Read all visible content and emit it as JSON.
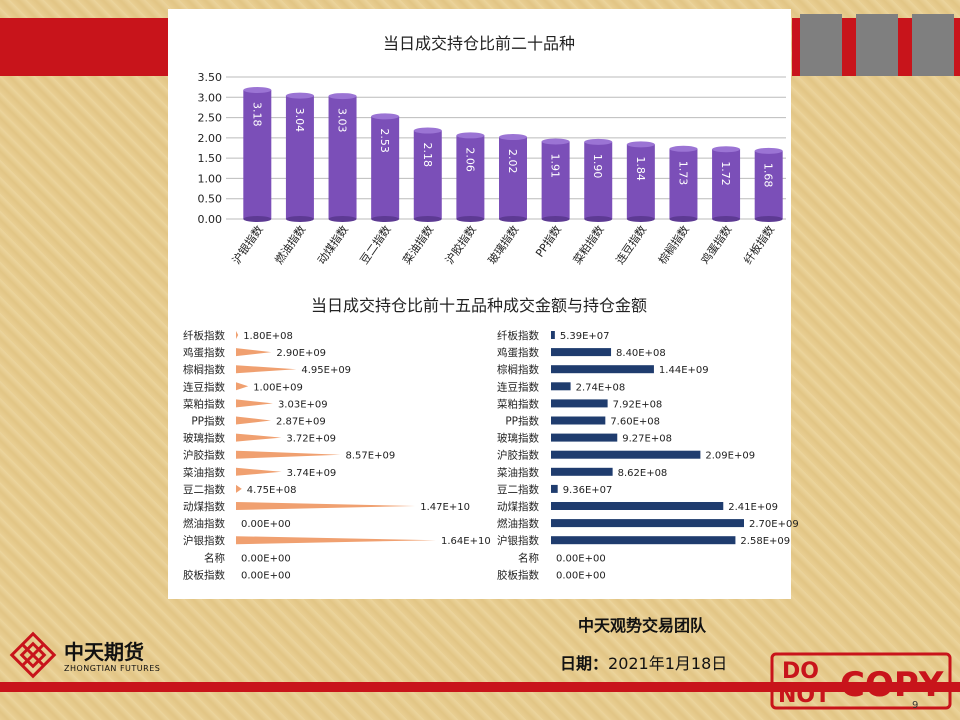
{
  "chart_data": [
    {
      "type": "bar",
      "title": "当日成交持仓比前二十品种",
      "categories": [
        "沪银指数",
        "燃油指数",
        "动煤指数",
        "豆二指数",
        "菜油指数",
        "沪胶指数",
        "玻璃指数",
        "PP指数",
        "菜粕指数",
        "连豆指数",
        "棕榈指数",
        "鸡蛋指数",
        "纤板指数"
      ],
      "values": [
        3.18,
        3.04,
        3.03,
        2.53,
        2.18,
        2.06,
        2.02,
        1.91,
        1.9,
        1.84,
        1.73,
        1.72,
        1.68
      ],
      "value_labels": [
        "3.18",
        "3.04",
        "3.03",
        "2.53",
        "2.18",
        "2.06",
        "2.02",
        "1.91",
        "1.90",
        "1.84",
        "1.73",
        "1.72",
        "1.68"
      ],
      "y_ticks": [
        "3.50",
        "3.00",
        "2.50",
        "2.00",
        "1.50",
        "1.00",
        "0.50",
        "0.00"
      ],
      "ylim": [
        0,
        3.5
      ],
      "color": "#7b4fb8"
    },
    {
      "type": "bar",
      "orientation": "horizontal",
      "title": "当日成交持仓比前十五品种成交金额与持仓金额",
      "categories": [
        "纤板指数",
        "鸡蛋指数",
        "棕榈指数",
        "连豆指数",
        "菜粕指数",
        "PP指数",
        "玻璃指数",
        "沪胶指数",
        "菜油指数",
        "豆二指数",
        "动煤指数",
        "燃油指数",
        "沪银指数",
        "名称",
        "胶板指数"
      ],
      "values": [
        180000000.0,
        2900000000.0,
        4950000000.0,
        1000000000.0,
        3030000000.0,
        2870000000.0,
        3720000000.0,
        8570000000.0,
        3740000000.0,
        475000000.0,
        14700000000.0,
        0,
        16400000000.0,
        0,
        0
      ],
      "value_labels": [
        "1.80E+08",
        "2.90E+09",
        "4.95E+09",
        "1.00E+09",
        "3.03E+09",
        "2.87E+09",
        "3.72E+09",
        "8.57E+09",
        "3.74E+09",
        "4.75E+08",
        "1.47E+10",
        "0.00E+00",
        "1.64E+10",
        "0.00E+00",
        "0.00E+00"
      ],
      "xlim": [
        0,
        16400000000.0
      ],
      "color": "#f0a070"
    },
    {
      "type": "bar",
      "orientation": "horizontal",
      "categories": [
        "纤板指数",
        "鸡蛋指数",
        "棕榈指数",
        "连豆指数",
        "菜粕指数",
        "PP指数",
        "玻璃指数",
        "沪胶指数",
        "菜油指数",
        "豆二指数",
        "动煤指数",
        "燃油指数",
        "沪银指数",
        "名称",
        "胶板指数"
      ],
      "values": [
        53900000.0,
        840000000.0,
        1440000000.0,
        274000000.0,
        792000000.0,
        760000000.0,
        927000000.0,
        2090000000.0,
        862000000.0,
        93600000.0,
        2410000000.0,
        2700000000.0,
        2580000000.0,
        0,
        0
      ],
      "value_labels": [
        "5.39E+07",
        "8.40E+08",
        "1.44E+09",
        "2.74E+08",
        "7.92E+08",
        "7.60E+08",
        "9.27E+08",
        "2.09E+09",
        "8.62E+08",
        "9.36E+07",
        "2.41E+09",
        "2.70E+09",
        "2.58E+09",
        "0.00E+00",
        "0.00E+00"
      ],
      "xlim": [
        0,
        2700000000.0
      ],
      "color": "#1f3c6e"
    }
  ],
  "footer": {
    "team": "中天观势交易团队",
    "date_label": "日期：",
    "date_value": "2021年1月18日",
    "company_cn": "中天期货",
    "company_en": "ZHONGTIAN FUTURES",
    "page_number": "9"
  },
  "stamp": {
    "line1": "DO",
    "line2": "NOT",
    "word": "COPY"
  }
}
